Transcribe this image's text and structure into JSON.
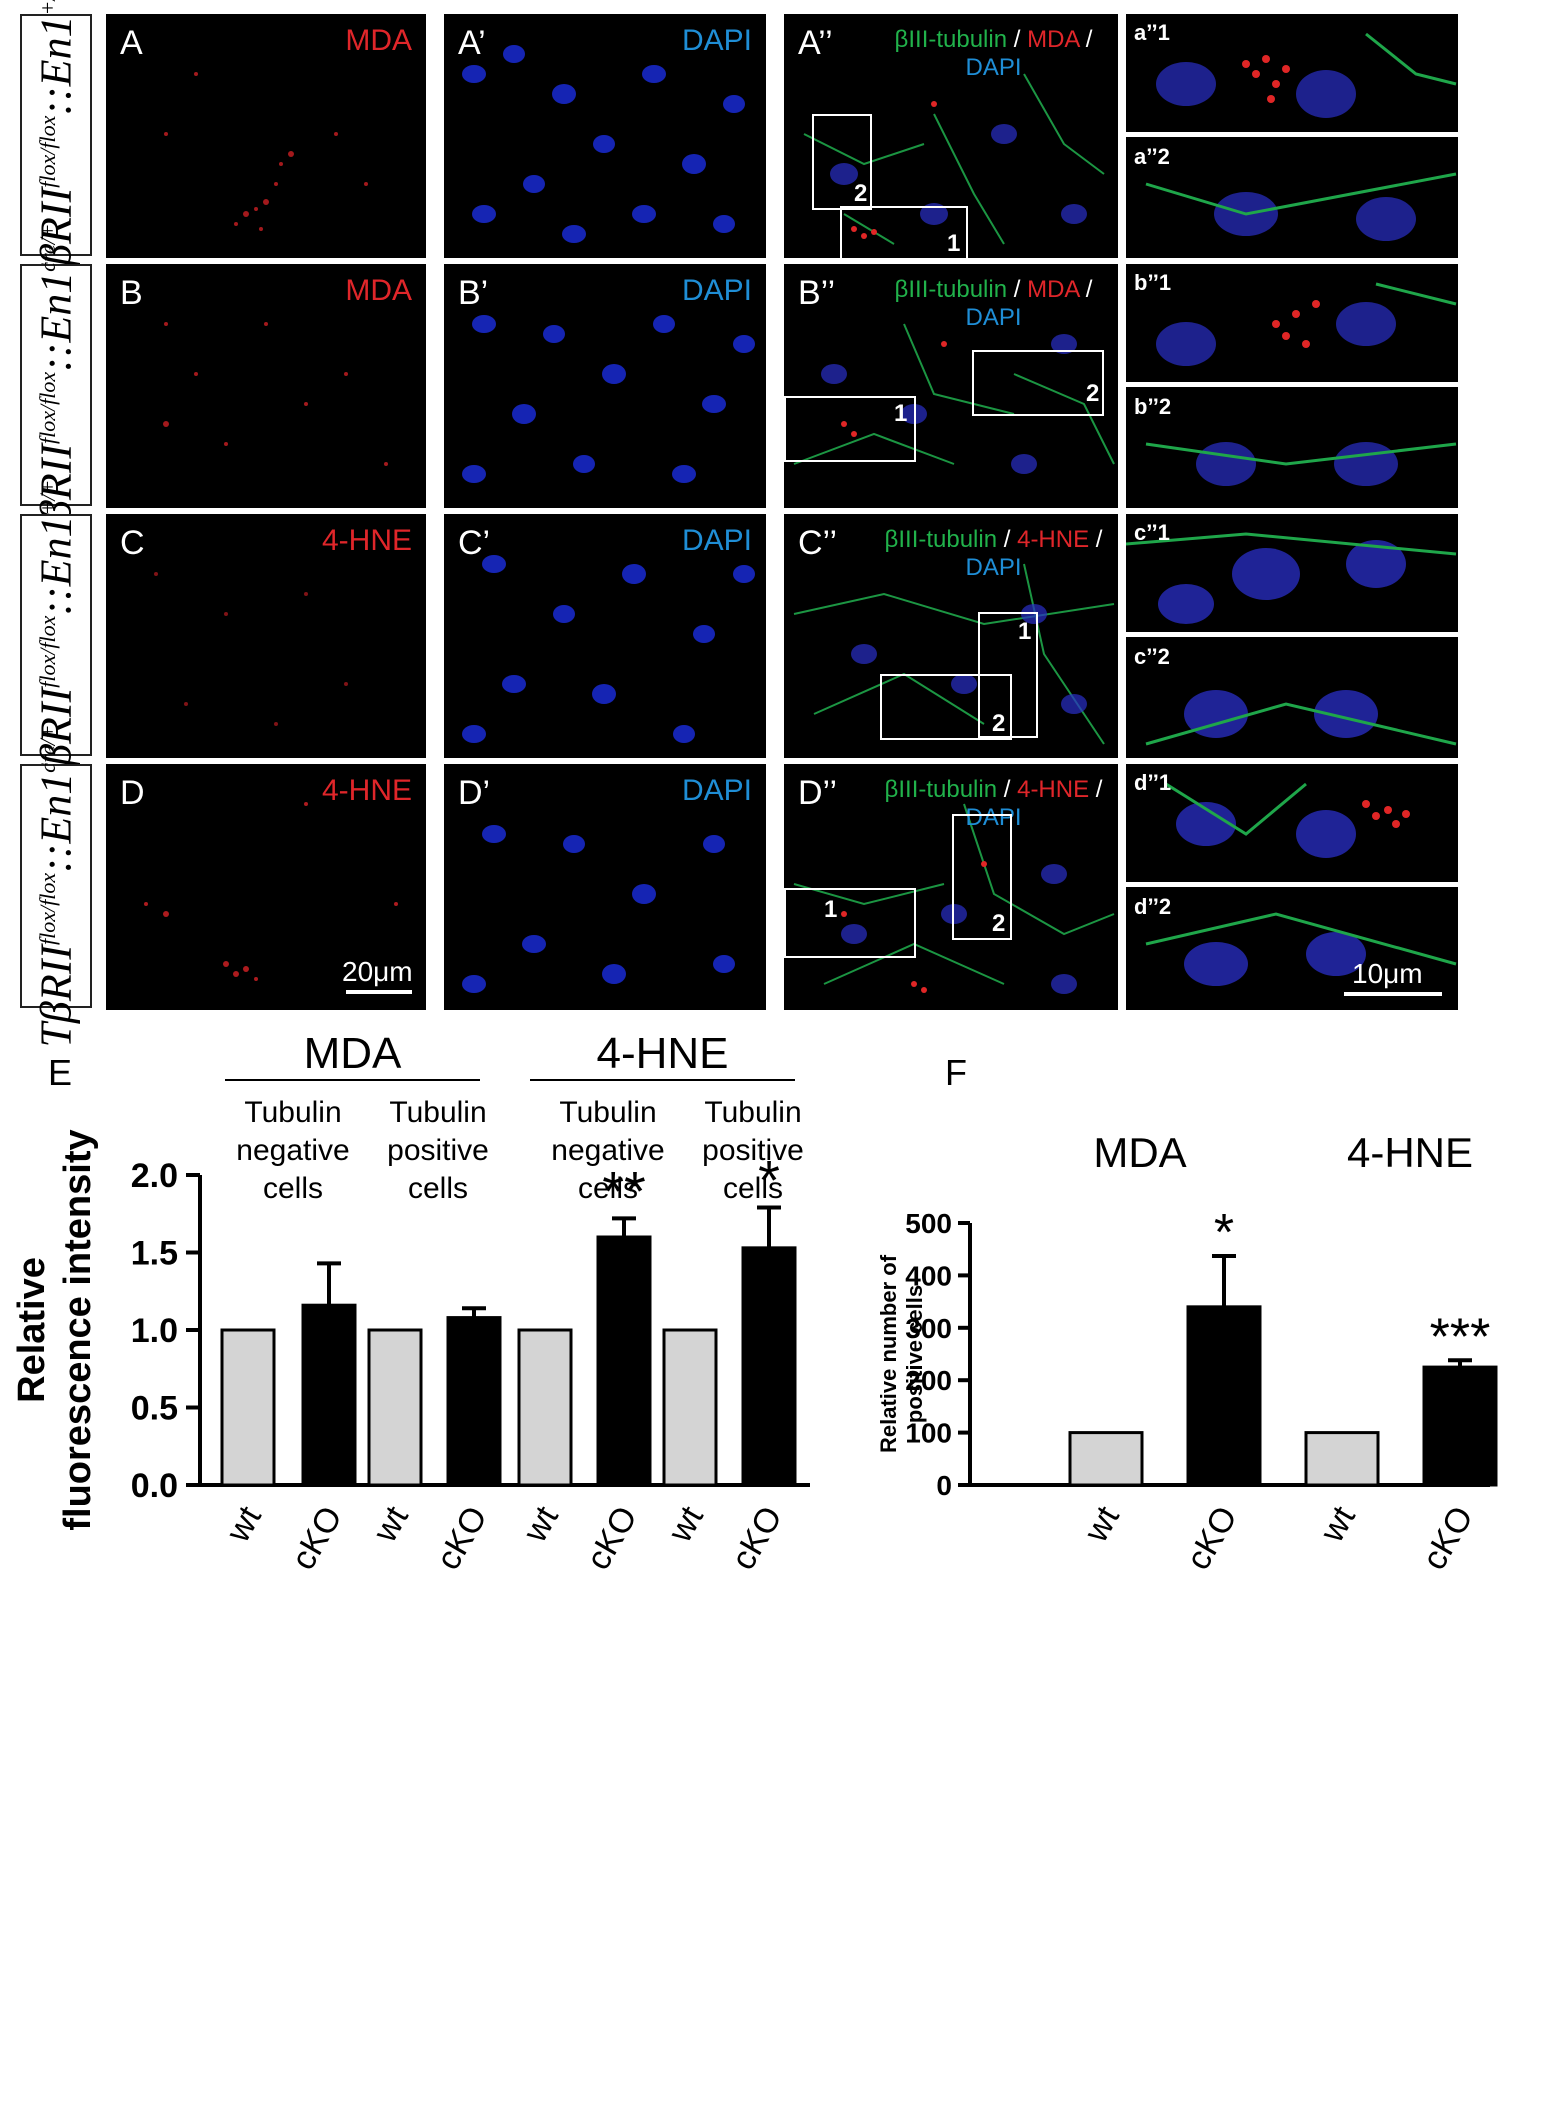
{
  "figure": {
    "rows": [
      {
        "genotype_main": "TβRII",
        "genotype_sup": "flox/flox",
        "genotype_mid": "::En1",
        "genotype_sup2": "+/+",
        "letter": "A",
        "channel": "MDA",
        "dapi_letter": "A’",
        "dapi": "DAPI",
        "merge_letter": "A’’",
        "merge_parts": [
          "βIII-tubulin",
          " / ",
          "MDA",
          " / ",
          "DAPI"
        ],
        "inlet1": "a’’1",
        "inlet2": "a’’2",
        "box1": "1",
        "box2": "2"
      },
      {
        "genotype_main": "TβRII",
        "genotype_sup": "flox/flox",
        "genotype_mid": "::En1",
        "genotype_sup2": "cre/+",
        "letter": "B",
        "channel": "MDA",
        "dapi_letter": "B’",
        "dapi": "DAPI",
        "merge_letter": "B’’",
        "merge_parts": [
          "βIII-tubulin",
          " / ",
          "MDA",
          " / ",
          "DAPI"
        ],
        "inlet1": "b’’1",
        "inlet2": "b’’2",
        "box1": "1",
        "box2": "2"
      },
      {
        "genotype_main": "TβRII",
        "genotype_sup": "flox/flox",
        "genotype_mid": "::En1",
        "genotype_sup2": "+/+",
        "letter": "C",
        "channel": "4-HNE",
        "dapi_letter": "C’",
        "dapi": "DAPI",
        "merge_letter": "C’’",
        "merge_parts": [
          "βIII-tubulin",
          " / ",
          "4-HNE",
          " / ",
          "DAPI"
        ],
        "inlet1": "c’’1",
        "inlet2": "c’’2",
        "box1": "1",
        "box2": "2"
      },
      {
        "genotype_main": "TβRII",
        "genotype_sup": "flox/flox",
        "genotype_mid": "::En1",
        "genotype_sup2": "cre/+",
        "letter": "D",
        "channel": "4-HNE",
        "dapi_letter": "D’",
        "dapi": "DAPI",
        "merge_letter": "D’’",
        "merge_parts": [
          "βIII-tubulin",
          " / ",
          "4-HNE",
          " / ",
          "DAPI"
        ],
        "inlet1": "d’’1",
        "inlet2": "d’’2",
        "box1": "1",
        "box2": "2"
      }
    ],
    "scale_left": "20μm",
    "scale_right": "10μm",
    "colors": {
      "red": "#e0262a",
      "blue": "#1f8ed6",
      "green": "#21b24b",
      "wt_bar": "#d4d4d4",
      "cko_bar": "#000000"
    }
  },
  "chart_data": [
    {
      "type": "bar",
      "panel_label": "E",
      "groups": [
        {
          "name": "MDA",
          "subgroups": [
            "Tubulin negative cells",
            "Tubulin positive cells"
          ]
        },
        {
          "name": "4-HNE",
          "subgroups": [
            "Tubulin negative cells",
            "Tubulin positive cells"
          ]
        }
      ],
      "group_headers": [
        "MDA",
        "4-HNE"
      ],
      "subgroup_headers": [
        [
          "Tubulin",
          "negative",
          "cells"
        ],
        [
          "Tubulin",
          "positive",
          "cells"
        ],
        [
          "Tubulin",
          "negative",
          "cells"
        ],
        [
          "Tubulin",
          "positive",
          "cells"
        ]
      ],
      "categories": [
        "wt",
        "cKO",
        "wt",
        "cKO",
        "wt",
        "cKO",
        "wt",
        "cKO"
      ],
      "values": [
        1.0,
        1.16,
        1.0,
        1.08,
        1.0,
        1.6,
        1.0,
        1.53
      ],
      "errors": [
        0,
        0.27,
        0,
        0.06,
        0,
        0.12,
        0,
        0.26
      ],
      "significance": [
        "",
        "",
        "",
        "",
        "",
        "**",
        "",
        "*"
      ],
      "ylabel": [
        "Relative",
        "fluorescence intensity"
      ],
      "yticks": [
        "0.0",
        "0.5",
        "1.0",
        "1.5",
        "2.0"
      ],
      "ylim": [
        0,
        2.0
      ]
    },
    {
      "type": "bar",
      "panel_label": "F",
      "group_headers": [
        "MDA",
        "4-HNE"
      ],
      "categories": [
        "wt",
        "cKO",
        "wt",
        "cKO"
      ],
      "values": [
        100,
        340,
        100,
        225
      ],
      "errors": [
        0,
        97,
        0,
        13
      ],
      "significance": [
        "",
        "*",
        "",
        "***"
      ],
      "ylabel": [
        "Relative number of",
        "positive cells"
      ],
      "yticks": [
        "0",
        "100",
        "200",
        "300",
        "400",
        "500"
      ],
      "ylim": [
        0,
        500
      ]
    }
  ]
}
